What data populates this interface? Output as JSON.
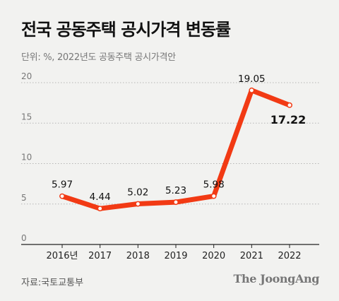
{
  "header": {
    "title": "전국 공동주택 공시가격 변동률",
    "subtitle": "단위: %, 2022년도 공동주택 공시가격안"
  },
  "footer": {
    "source": "자료:국토교통부",
    "logo": "The JoongAng"
  },
  "colors": {
    "line": "#f23a14",
    "background": "#f2f2f0",
    "grid": "#b5b5b5",
    "axis": "#222222"
  },
  "chart_data": {
    "type": "line",
    "title": "전국 공동주택 공시가격 변동률",
    "subtitle": "단위: %, 2022년도 공동주택 공시가격안",
    "categories": [
      "2016년",
      "2017",
      "2018",
      "2019",
      "2020",
      "2021",
      "2022"
    ],
    "series": [
      {
        "values": [
          5.97,
          4.44,
          5.02,
          5.23,
          5.98,
          19.05,
          17.22
        ]
      }
    ],
    "data_labels": [
      "5.97",
      "4.44",
      "5.02",
      "5.23",
      "5.98",
      "19.05",
      "17.22"
    ],
    "highlight_index": 6,
    "ylim": [
      0,
      20
    ],
    "yticks": [
      0,
      5,
      10,
      15,
      20
    ],
    "grid": true,
    "xlabel": "",
    "ylabel": ""
  }
}
